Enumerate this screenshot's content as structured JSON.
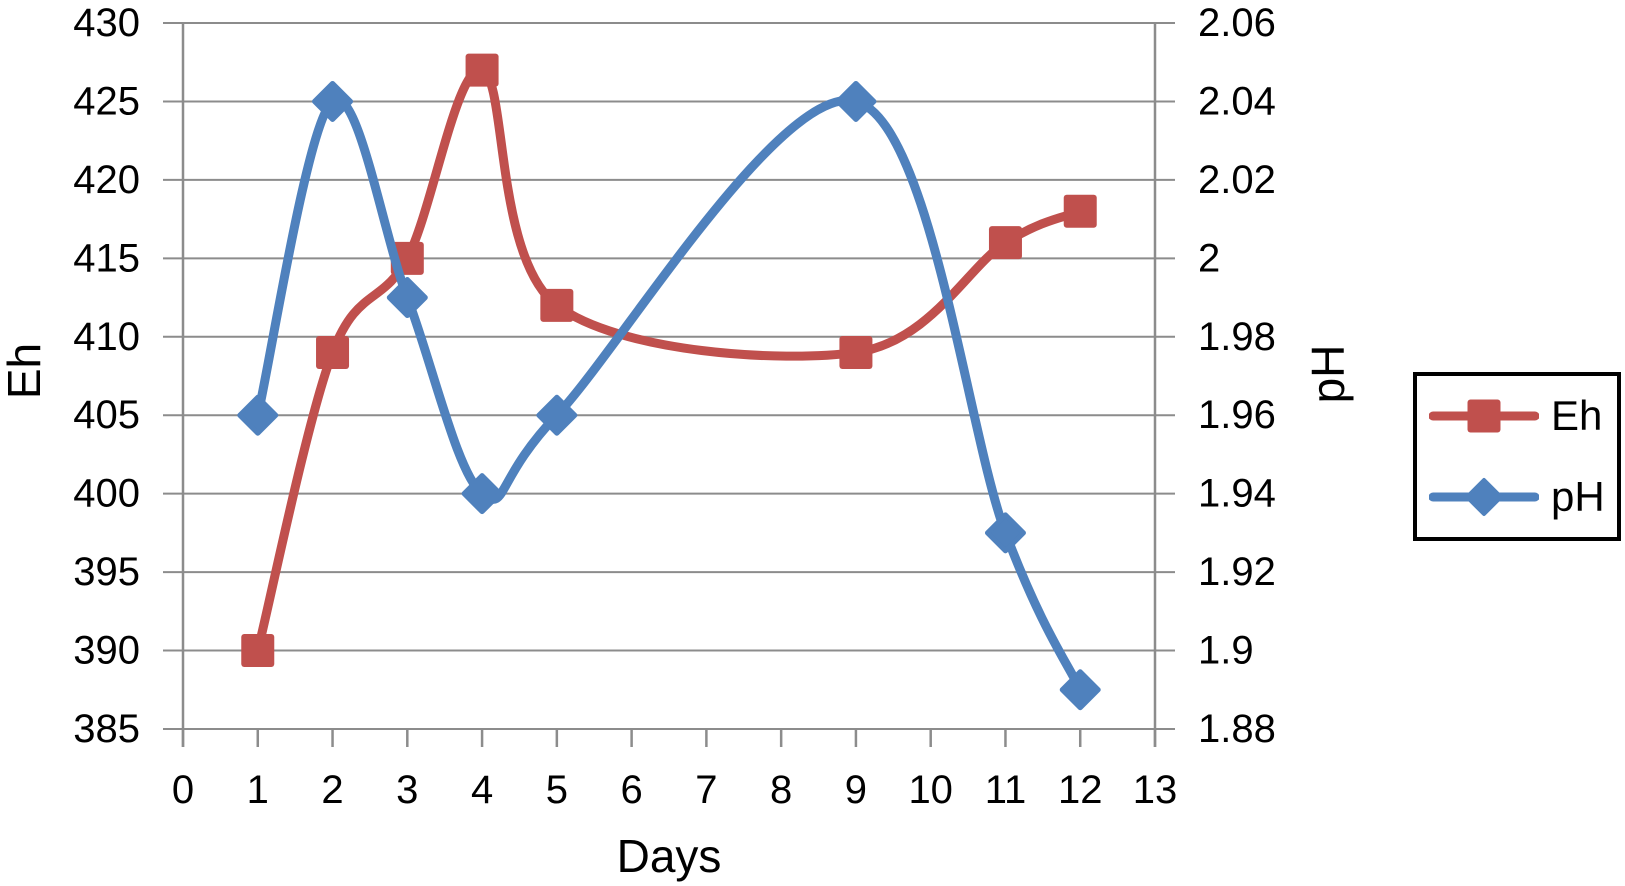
{
  "chart_data": {
    "type": "line",
    "smooth": true,
    "title": "",
    "xlabel": "Days",
    "ylabel_left": "Eh",
    "ylabel_right": "pH",
    "x": [
      1,
      2,
      3,
      4,
      5,
      9,
      11,
      12
    ],
    "series": [
      {
        "name": "Eh",
        "axis": "left",
        "marker": "square",
        "color": "#c0504d",
        "values": [
          390,
          409,
          415,
          427,
          412,
          409,
          416,
          418
        ]
      },
      {
        "name": "pH",
        "axis": "right",
        "marker": "diamond",
        "color": "#4f81bd",
        "values": [
          1.96,
          2.04,
          1.99,
          1.94,
          1.96,
          2.04,
          1.93,
          1.89
        ]
      }
    ],
    "axes": {
      "x": {
        "min": 0,
        "max": 13,
        "tick_labels": [
          "0",
          "1",
          "2",
          "3",
          "4",
          "5",
          "6",
          "7",
          "8",
          "9",
          "10",
          "11",
          "12",
          "13"
        ]
      },
      "left": {
        "min": 385,
        "max": 430,
        "step": 5,
        "tick_labels": [
          "430",
          "425",
          "420",
          "415",
          "410",
          "405",
          "400",
          "395",
          "390",
          "385"
        ]
      },
      "right": {
        "min": 1.88,
        "max": 2.06,
        "step": 0.02,
        "tick_labels": [
          "2.06",
          "2.04",
          "2.02",
          "2",
          "1.98",
          "1.96",
          "1.94",
          "1.92",
          "1.9",
          "1.88"
        ]
      }
    },
    "legend": {
      "position": "right",
      "items": [
        "Eh",
        "pH"
      ]
    },
    "style": {
      "grid_on": true,
      "grid_color": "#8c8c8c",
      "text_color": "#000000",
      "background": "#ffffff"
    }
  }
}
